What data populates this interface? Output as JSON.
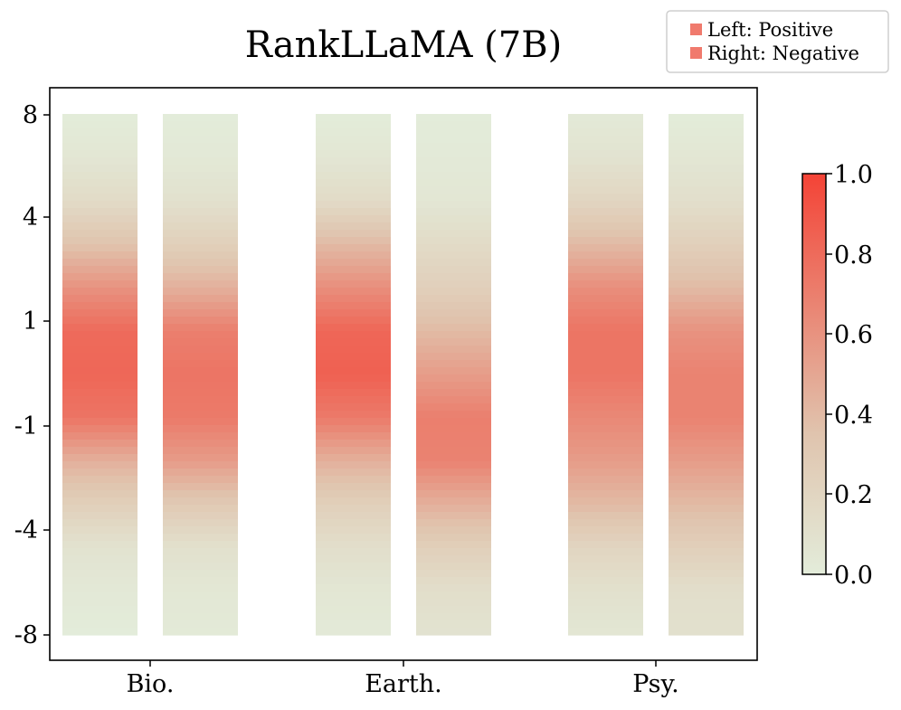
{
  "chart_data": {
    "type": "heatmap",
    "title": "RankLLaMA (7B)",
    "legend": {
      "placement": "top-right",
      "entries": [
        "Left: Positive",
        "Right: Negative"
      ],
      "color": "#f07a6d"
    },
    "y_ticks": [
      "8",
      "4",
      "1",
      "-1",
      "-4",
      "-8"
    ],
    "colorbar": {
      "ticks": [
        "0.0",
        "0.2",
        "0.4",
        "0.6",
        "0.8",
        "1.0"
      ],
      "range": [
        0.0,
        1.0
      ],
      "color_low": "#e3ecda",
      "color_mid": "#e0c4ae",
      "color_high": "#f44336"
    },
    "categories": [
      "Bio.",
      "Earth.",
      "Psy."
    ],
    "series": [
      {
        "name": "Left: Positive",
        "columns": [
          {
            "category": "Bio.",
            "values": [
              0.0,
              0.05,
              0.15,
              0.35,
              0.6,
              0.8,
              0.82,
              0.75,
              0.45,
              0.25,
              0.08,
              0.03,
              0.0
            ]
          },
          {
            "category": "Earth.",
            "values": [
              0.0,
              0.05,
              0.15,
              0.4,
              0.62,
              0.82,
              0.85,
              0.72,
              0.45,
              0.25,
              0.12,
              0.05,
              0.02
            ]
          },
          {
            "category": "Psy.",
            "values": [
              0.02,
              0.08,
              0.2,
              0.4,
              0.62,
              0.75,
              0.75,
              0.65,
              0.55,
              0.4,
              0.2,
              0.1,
              0.05
            ]
          }
        ]
      },
      {
        "name": "Right: Negative",
        "columns": [
          {
            "category": "Bio.",
            "values": [
              0.0,
              0.03,
              0.1,
              0.25,
              0.45,
              0.7,
              0.75,
              0.72,
              0.55,
              0.3,
              0.1,
              0.04,
              0.02
            ]
          },
          {
            "category": "Earth.",
            "values": [
              0.0,
              0.02,
              0.05,
              0.15,
              0.25,
              0.4,
              0.55,
              0.7,
              0.68,
              0.45,
              0.25,
              0.12,
              0.08
            ]
          },
          {
            "category": "Psy.",
            "values": [
              0.0,
              0.05,
              0.12,
              0.25,
              0.4,
              0.6,
              0.68,
              0.68,
              0.55,
              0.4,
              0.25,
              0.12,
              0.1
            ]
          }
        ]
      }
    ]
  }
}
